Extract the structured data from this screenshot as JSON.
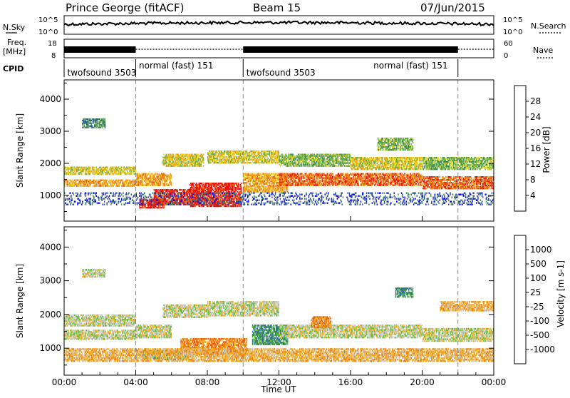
{
  "header": {
    "station": "Prince George (fitACF)",
    "beam": "Beam 15",
    "date": "07/Jun/2015"
  },
  "noise_panel": {
    "left_label": "N.Sky",
    "right_label": "N.Search",
    "left_ticks": [
      "10^5",
      "10^0"
    ],
    "right_ticks": [
      "10^5",
      "10^0"
    ]
  },
  "freq_panel": {
    "left_label_1": "Freq.",
    "left_label_2": "[MHz]",
    "left_ticks": [
      "18",
      "8"
    ],
    "right_label": "Nave",
    "right_ticks": [
      "60",
      "0"
    ]
  },
  "cpid": {
    "label": "CPID",
    "segments": [
      {
        "name": "twofsound 3503",
        "start": 0,
        "end": 4
      },
      {
        "name": "normal (fast) 151",
        "start": 4,
        "end": 10
      },
      {
        "name": "twofsound 3503",
        "start": 10,
        "end": 22
      },
      {
        "name": "normal (fast) 151",
        "start": 22,
        "end": 24
      }
    ],
    "label_positions_hours": [
      0.1,
      4.1,
      10.1,
      17.2
    ]
  },
  "chart_data": [
    {
      "type": "heatmap",
      "name": "power",
      "ylabel": "Slant Range [km]",
      "yticks": [
        1000,
        2000,
        3000,
        4000
      ],
      "ylim": [
        200,
        4600
      ],
      "colorbar_label": "Power [dB]",
      "colorbar_ticks": [
        "4",
        "8",
        "12",
        "16",
        "20",
        "24",
        "28"
      ],
      "colors": [
        "#0000ff",
        "#2d4fa0",
        "#3f8c5a",
        "#6db24a",
        "#e8d21e",
        "#f2a318",
        "#f06414",
        "#e81010"
      ],
      "bands": [
        {
          "t0": 0.0,
          "t1": 4.0,
          "r0": 1280,
          "r1": 1500,
          "level": 5
        },
        {
          "t0": 0.0,
          "t1": 4.0,
          "r0": 1650,
          "r1": 1900,
          "level": 4
        },
        {
          "t0": 4.0,
          "t1": 6.0,
          "r0": 1300,
          "r1": 1700,
          "level": 5
        },
        {
          "t0": 4.2,
          "t1": 5.6,
          "r0": 600,
          "r1": 900,
          "level": 7
        },
        {
          "t0": 5.0,
          "t1": 7.5,
          "r0": 700,
          "r1": 1200,
          "level": 7
        },
        {
          "t0": 7.0,
          "t1": 9.9,
          "r0": 650,
          "r1": 1400,
          "level": 7
        },
        {
          "t0": 5.5,
          "t1": 7.8,
          "r0": 1900,
          "r1": 2300,
          "level": 4
        },
        {
          "t0": 8.0,
          "t1": 12.0,
          "r0": 2000,
          "r1": 2400,
          "level": 4
        },
        {
          "t0": 10.0,
          "t1": 12.5,
          "r0": 1100,
          "r1": 1700,
          "level": 5
        },
        {
          "t0": 12.0,
          "t1": 16.0,
          "r0": 1300,
          "r1": 1700,
          "level": 6
        },
        {
          "t0": 12.0,
          "t1": 16.0,
          "r0": 1900,
          "r1": 2300,
          "level": 3
        },
        {
          "t0": 16.0,
          "t1": 20.0,
          "r0": 1300,
          "r1": 1700,
          "level": 6
        },
        {
          "t0": 16.0,
          "t1": 20.0,
          "r0": 1800,
          "r1": 2200,
          "level": 4
        },
        {
          "t0": 17.5,
          "t1": 19.5,
          "r0": 2400,
          "r1": 2800,
          "level": 3
        },
        {
          "t0": 20.0,
          "t1": 24.0,
          "r0": 1200,
          "r1": 1600,
          "level": 6
        },
        {
          "t0": 20.0,
          "t1": 24.0,
          "r0": 1800,
          "r1": 2200,
          "level": 3
        },
        {
          "t0": 1.0,
          "t1": 2.3,
          "r0": 3100,
          "r1": 3400,
          "level": 2
        },
        {
          "t0": 0.0,
          "t1": 24.0,
          "r0": 700,
          "r1": 1100,
          "level": 1
        }
      ]
    },
    {
      "type": "heatmap",
      "name": "velocity",
      "ylabel": "Slant Range [km]",
      "yticks": [
        1000,
        2000,
        3000,
        4000
      ],
      "ylim": [
        200,
        4600
      ],
      "colorbar_label": "Velocity [m s-1]",
      "colorbar_ticks": [
        "1000",
        "500",
        "100",
        "25",
        "-25",
        "-100",
        "-500",
        "-1000"
      ],
      "colors": [
        "#1f3fbf",
        "#3a6db0",
        "#2e8a4e",
        "#5cc23a",
        "#c8c8c4",
        "#f5b020",
        "#f08010",
        "#f05010",
        "#e01010"
      ],
      "bands": [
        {
          "t0": 0.0,
          "t1": 4.0,
          "r0": 1250,
          "r1": 1550,
          "level": 4
        },
        {
          "t0": 0.0,
          "t1": 4.0,
          "r0": 1650,
          "r1": 2000,
          "level": 4
        },
        {
          "t0": 4.0,
          "t1": 6.0,
          "r0": 1300,
          "r1": 1700,
          "level": 4
        },
        {
          "t0": 4.3,
          "t1": 7.0,
          "r0": 650,
          "r1": 950,
          "level": 3
        },
        {
          "t0": 6.5,
          "t1": 10.2,
          "r0": 800,
          "r1": 1300,
          "level": 6
        },
        {
          "t0": 5.5,
          "t1": 8.0,
          "r0": 1900,
          "r1": 2300,
          "level": 4
        },
        {
          "t0": 8.0,
          "t1": 12.0,
          "r0": 1950,
          "r1": 2400,
          "level": 4
        },
        {
          "t0": 10.5,
          "t1": 12.5,
          "r0": 1100,
          "r1": 1700,
          "level": 2
        },
        {
          "t0": 12.0,
          "t1": 16.0,
          "r0": 1300,
          "r1": 1700,
          "level": 4
        },
        {
          "t0": 13.8,
          "t1": 14.9,
          "r0": 1600,
          "r1": 1950,
          "level": 6
        },
        {
          "t0": 16.0,
          "t1": 20.0,
          "r0": 1300,
          "r1": 1700,
          "level": 4
        },
        {
          "t0": 18.5,
          "t1": 19.5,
          "r0": 2500,
          "r1": 2800,
          "level": 2
        },
        {
          "t0": 20.0,
          "t1": 24.0,
          "r0": 1200,
          "r1": 1600,
          "level": 4
        },
        {
          "t0": 21.0,
          "t1": 24.0,
          "r0": 2100,
          "r1": 2400,
          "level": 5
        },
        {
          "t0": 1.0,
          "t1": 2.3,
          "r0": 3100,
          "r1": 3350,
          "level": 4
        },
        {
          "t0": 0.0,
          "t1": 24.0,
          "r0": 600,
          "r1": 1000,
          "level": 5
        }
      ]
    }
  ],
  "time_axis": {
    "label": "Time UT",
    "ticks": [
      "00:00",
      "04:00",
      "08:00",
      "12:00",
      "16:00",
      "20:00",
      "00:00"
    ],
    "tick_hours": [
      0,
      4,
      8,
      12,
      16,
      20,
      24
    ],
    "boundary_hours": [
      4,
      10,
      22
    ]
  }
}
